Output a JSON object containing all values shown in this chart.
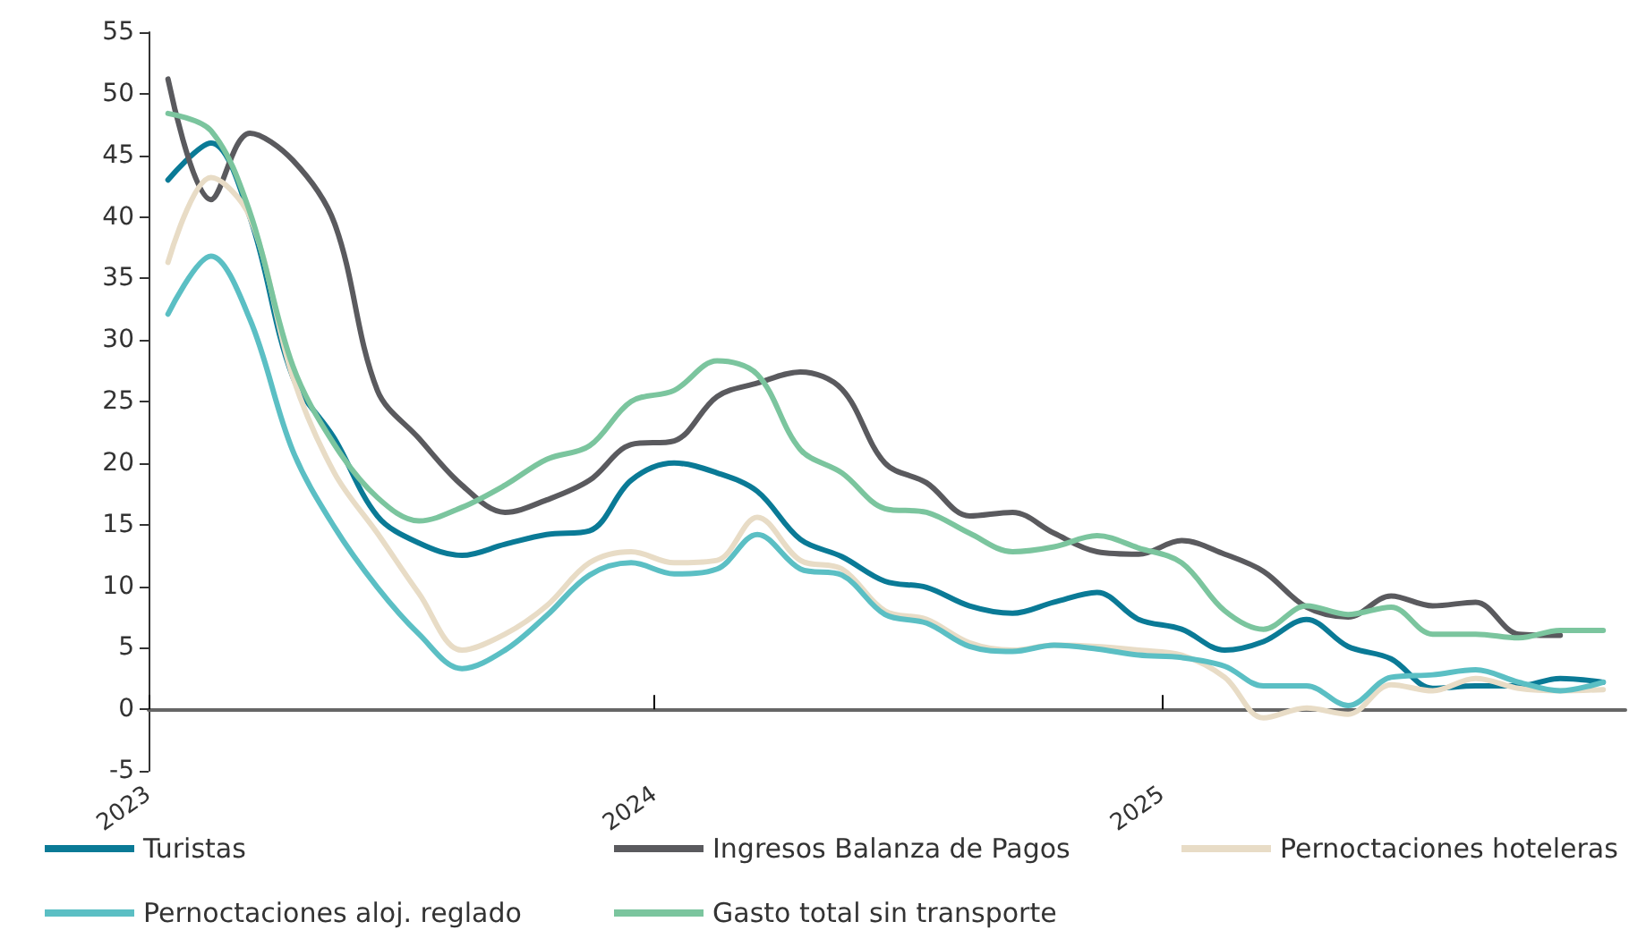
{
  "chart_data": {
    "type": "line",
    "x": [
      "2023-01-15",
      "2023-02-15",
      "2023-03-15",
      "2023-04-15",
      "2023-05-15",
      "2023-06-15",
      "2023-07-15",
      "2023-08-15",
      "2023-09-15",
      "2023-10-15",
      "2023-11-15",
      "2023-12-15",
      "2024-01-15",
      "2024-02-15",
      "2024-03-15",
      "2024-04-15",
      "2024-05-15",
      "2024-06-15",
      "2024-07-15",
      "2024-08-15",
      "2024-09-15",
      "2024-10-15",
      "2024-11-15",
      "2024-12-15",
      "2025-01-15",
      "2025-02-15",
      "2025-03-15",
      "2025-04-15",
      "2025-05-15",
      "2025-06-15",
      "2025-07-15",
      "2025-08-15",
      "2025-09-15",
      "2025-10-15",
      "2025-11-15"
    ],
    "series": [
      {
        "name": "Turistas",
        "color": "#0a7a96",
        "values": [
          43,
          46,
          40,
          27,
          22,
          15.7,
          13.5,
          12.5,
          13.4,
          14.2,
          14.5,
          18.6,
          20,
          19.2,
          17.7,
          13.8,
          12.4,
          10.4,
          9.9,
          8.4,
          7.8,
          8.7,
          9.5,
          7.3,
          6.5,
          4.8,
          5.5,
          7.3,
          5.1,
          4.1,
          1.7,
          1.9,
          1.9,
          2.5,
          2.2
        ]
      },
      {
        "name": "Ingresos Balanza de Pagos",
        "color": "#5a5a5e",
        "values": [
          51.2,
          41.4,
          46.8,
          44.6,
          39.5,
          25.9,
          22,
          18.2,
          16,
          17,
          18.6,
          21.5,
          21.8,
          25.4,
          26.5,
          27.4,
          26,
          20,
          18.4,
          15.7,
          16,
          14.3,
          12.8,
          12.6,
          13.7,
          12.6,
          11.2,
          8.3,
          7.5,
          9.2,
          8.4,
          8.7,
          6.1,
          6,
          null
        ]
      },
      {
        "name": "Pernoctaciones hoteleras",
        "color": "#e8dcc6",
        "values": [
          36.3,
          43.2,
          40,
          27,
          19.2,
          14.3,
          9.4,
          4.8,
          6.1,
          8.4,
          11.9,
          12.8,
          11.9,
          12.1,
          15.6,
          12.1,
          11.4,
          8,
          7.3,
          5.4,
          4.8,
          5.2,
          5.1,
          4.8,
          4.4,
          2.6,
          -0.7,
          0.1,
          -0.4,
          2,
          1.5,
          2.5,
          1.7,
          1.5,
          1.6
        ]
      },
      {
        "name": "Pernoctaciones aloj. reglado",
        "color": "#5bbfc4",
        "values": [
          32.1,
          36.8,
          31.7,
          21,
          14.8,
          9.9,
          6.1,
          3.3,
          4.8,
          7.6,
          10.9,
          11.9,
          11,
          11.4,
          14.2,
          11.4,
          10.9,
          7.7,
          7,
          5.1,
          4.7,
          5.2,
          4.9,
          4.4,
          4.2,
          3.5,
          1.9,
          1.9,
          0.3,
          2.6,
          2.8,
          3.2,
          2.2,
          1.5,
          2.2
        ]
      },
      {
        "name": "Gasto total sin transporte",
        "color": "#7bc59e",
        "values": [
          48.4,
          47,
          40.4,
          27.9,
          21.5,
          17.2,
          15.3,
          16.4,
          18.2,
          20.3,
          21.4,
          25,
          25.9,
          28.3,
          27.2,
          21.1,
          19.2,
          16.3,
          16,
          14.3,
          12.8,
          13.2,
          14.1,
          13.1,
          11.9,
          8,
          6.5,
          8.4,
          7.7,
          8.3,
          6.1,
          6.1,
          5.8,
          6.4,
          6.4
        ]
      }
    ],
    "xlim": [
      "2023-01-01",
      "2025-12-01"
    ],
    "xticks": [
      "2023",
      "2024",
      "2025"
    ],
    "ylim": [
      -5,
      55
    ],
    "yticks": [
      -5,
      0,
      5,
      10,
      15,
      20,
      25,
      30,
      35,
      40,
      45,
      50,
      55
    ],
    "legend": "bottom",
    "marker": "none",
    "line_style": "solid"
  }
}
